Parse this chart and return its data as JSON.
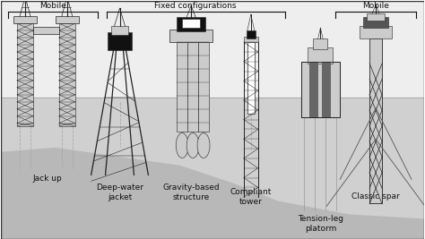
{
  "fig_bg": "#ffffff",
  "background_color": "#eeeeee",
  "water_color": "#d0d0d0",
  "seabed_color": "#b8b8b8",
  "mobile_label_1": "Mobile",
  "mobile_label_2": "Mobile",
  "fixed_label": "Fixed configurations",
  "text_color": "#111111",
  "dark_gray": "#222222",
  "mid_gray": "#888888",
  "light_gray": "#cccccc",
  "white": "#ffffff",
  "black": "#111111"
}
